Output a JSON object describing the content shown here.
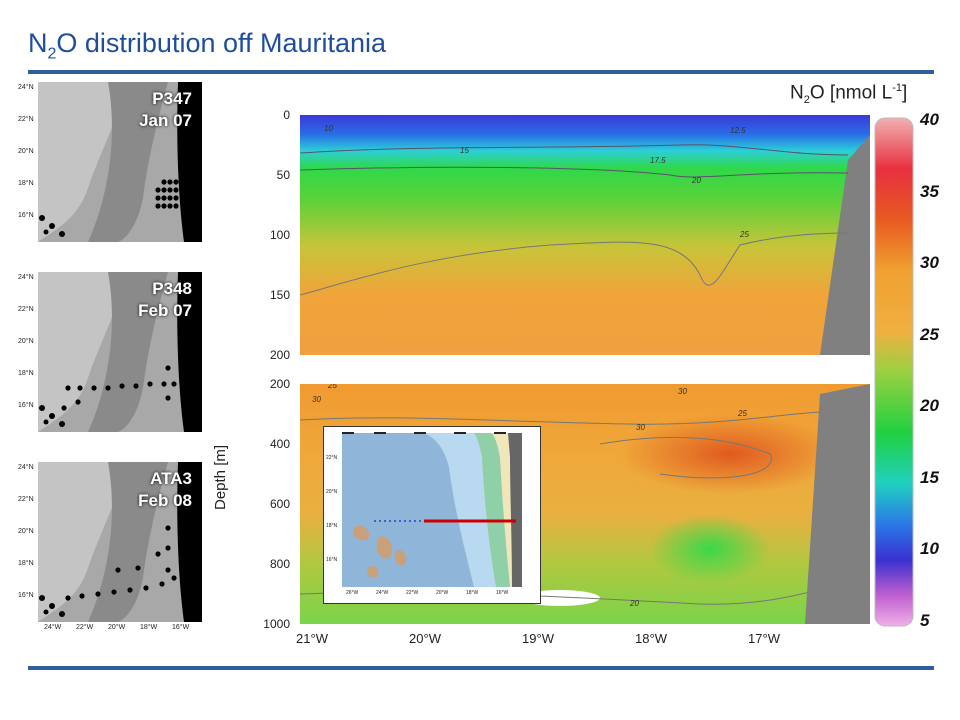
{
  "title": {
    "pre": "N",
    "sub": "2",
    "post": "O distribution off Mauritania"
  },
  "maps": [
    {
      "cruise": "P347",
      "date": "Jan 07"
    },
    {
      "cruise": "P348",
      "date": "Feb 07"
    },
    {
      "cruise": "ATA3",
      "date": "Feb 08"
    }
  ],
  "map_lat_labels": [
    "24°N",
    "22°N",
    "20°N",
    "18°N",
    "16°N"
  ],
  "map_lon_labels": [
    "24°W",
    "22°W",
    "20°W",
    "18°W",
    "16°W"
  ],
  "inset_lat_labels": [
    "22°N",
    "20°N",
    "18°N",
    "16°N"
  ],
  "inset_lon_labels": [
    "26°W",
    "24°W",
    "22°W",
    "20°W",
    "18°W",
    "16°W"
  ],
  "colorbar": {
    "unit_pre": "N",
    "unit_sub": "2",
    "unit_mid": "O [nmol L",
    "unit_sup": "-1",
    "unit_post": "]",
    "ticks": [
      "40",
      "35",
      "30",
      "25",
      "20",
      "15",
      "10",
      "5"
    ]
  },
  "colors": {
    "title": "#1f4e9c",
    "rule": "#2f5f9f",
    "land": "#808080",
    "transect": "#cc0000"
  },
  "chart_data": {
    "type": "heatmap",
    "ylabel": "Depth [m]",
    "x_ticks": [
      "21°W",
      "20°W",
      "19°W",
      "18°W",
      "17°W"
    ],
    "upper_panel": {
      "y_ticks": [
        "0",
        "50",
        "100",
        "150",
        "200"
      ],
      "ylim": [
        0,
        200
      ],
      "contour_labels": [
        "10",
        "15",
        "12.5",
        "17.5",
        "20",
        "25"
      ]
    },
    "lower_panel": {
      "y_ticks": [
        "200",
        "400",
        "600",
        "800",
        "1000"
      ],
      "ylim": [
        200,
        1000
      ],
      "contour_labels": [
        "25",
        "30",
        "30",
        "30",
        "25",
        "20"
      ]
    },
    "colorbar_range": [
      5,
      40
    ]
  }
}
